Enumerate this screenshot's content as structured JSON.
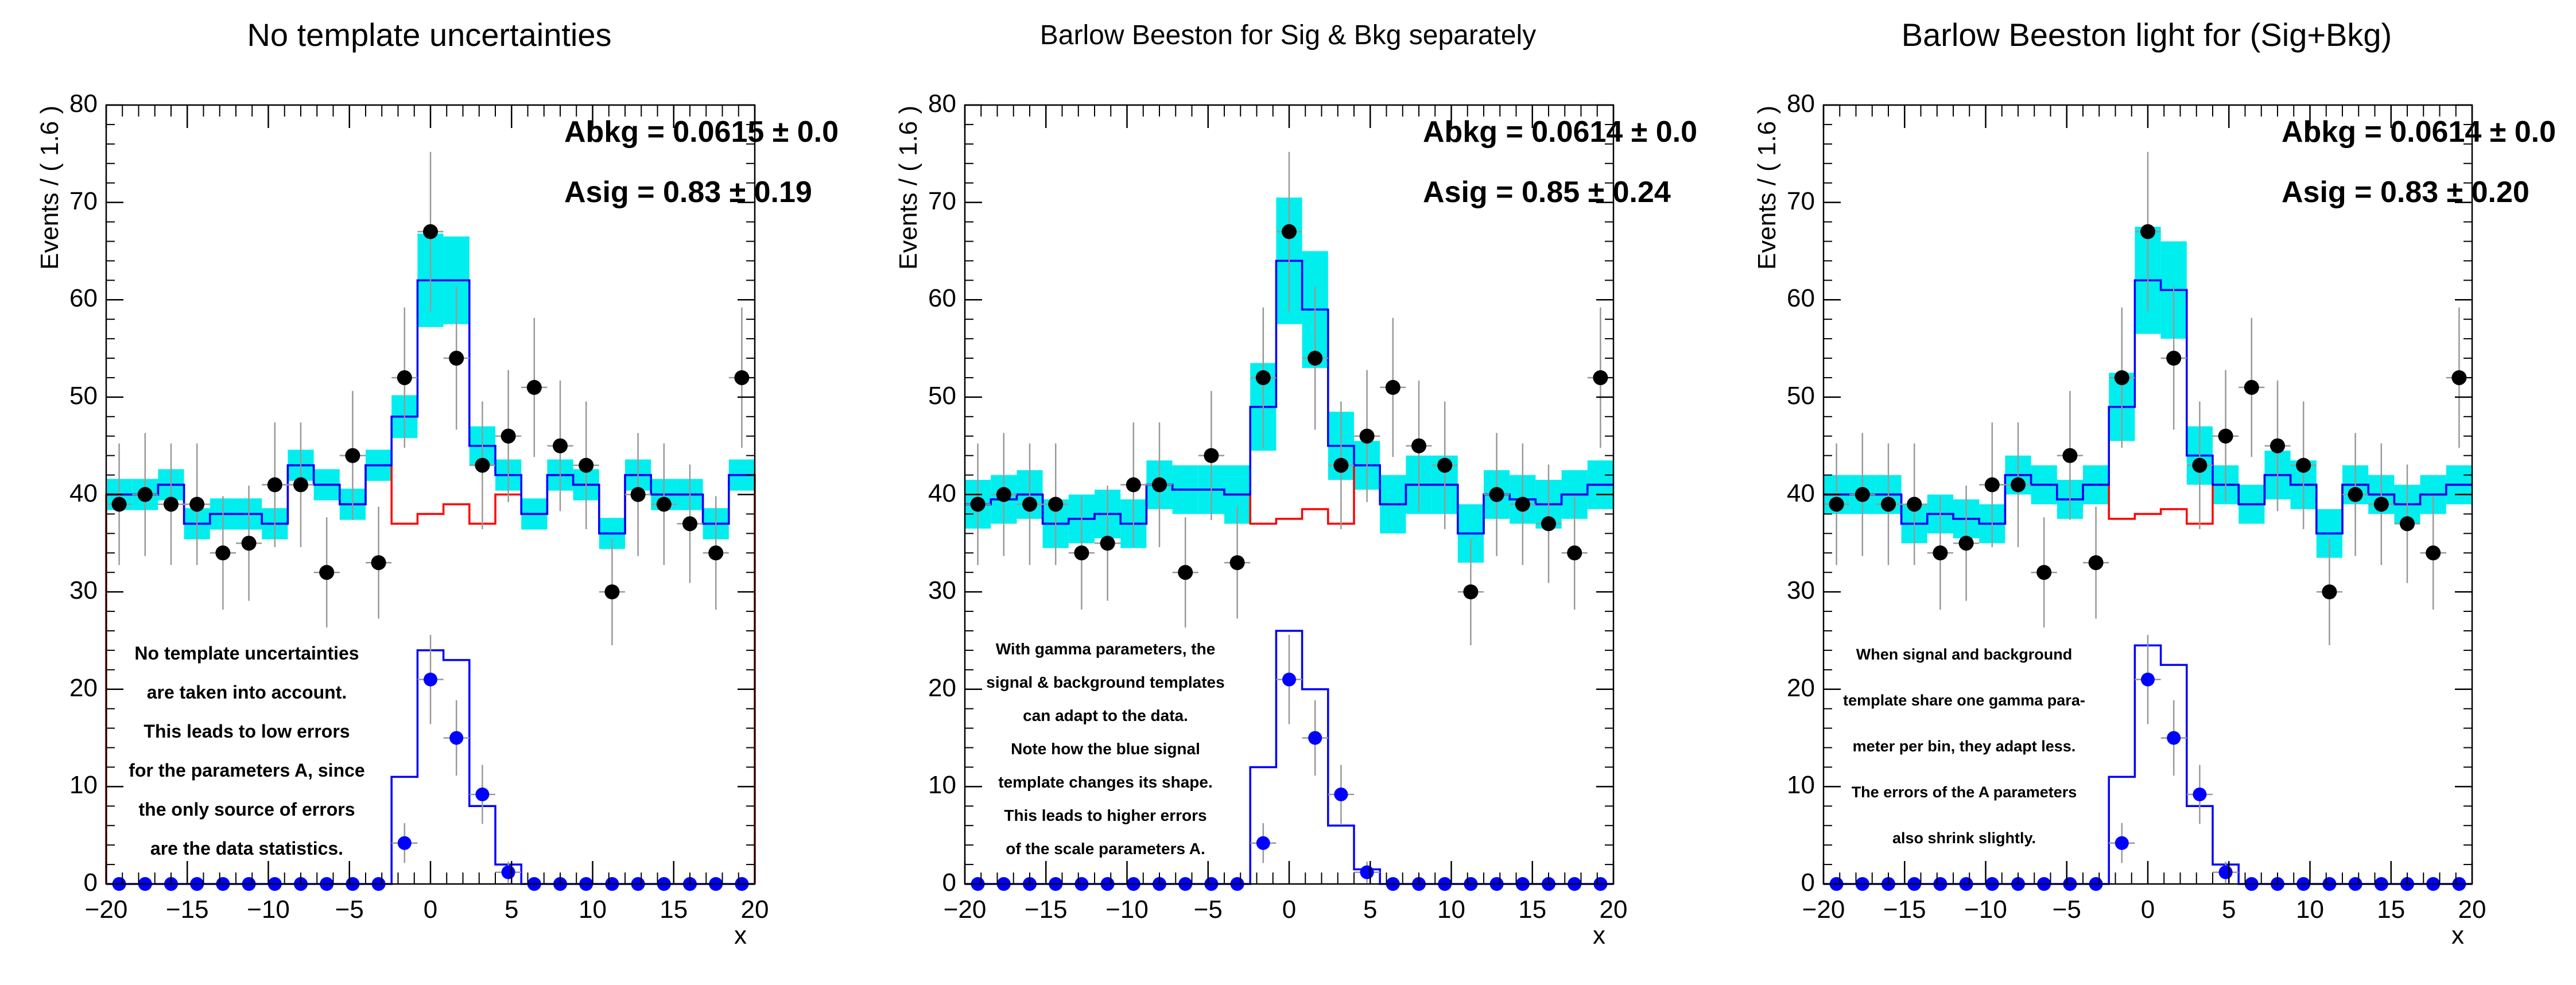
{
  "chart_data": [
    {
      "type": "line",
      "title": "No template uncertainties",
      "xlabel": "x",
      "ylabel": "Events / ( 1.6 )",
      "xlim": [
        -20,
        20
      ],
      "ylim": [
        0,
        80
      ],
      "xticks": [
        "−20",
        "−15",
        "−10",
        "−5",
        "0",
        "5",
        "10",
        "15",
        "20"
      ],
      "yticks": [
        "0",
        "10",
        "20",
        "30",
        "40",
        "50",
        "60",
        "70",
        "80"
      ],
      "params": [
        {
          "label": "Abkg =  0.0615 ± 0.0",
          "value": 0.0615
        },
        {
          "label": "Asig =  0.83 ± 0.19",
          "value": 0.83,
          "error": 0.19
        }
      ],
      "annotation": [
        "No template uncertainties",
        "are taken into account.",
        "This leads to low errors",
        "for the parameters A, since",
        "the only source of errors",
        "are the data statistics."
      ],
      "bin_edges": [
        -20,
        -18.4,
        -16.8,
        -15.2,
        -13.6,
        -12,
        -10.4,
        -8.8,
        -7.2,
        -5.6,
        -4,
        -2.4,
        -0.8,
        0.8,
        2.4,
        4,
        5.6,
        7.2,
        8.8,
        10.4,
        12,
        13.6,
        15.2,
        16.8,
        18.4,
        20
      ],
      "series": [
        {
          "name": "data",
          "x": [
            -19.2,
            -17.6,
            -16,
            -14.4,
            -12.8,
            -11.2,
            -9.6,
            -8,
            -6.4,
            -4.8,
            -3.2,
            -1.6,
            0,
            1.6,
            3.2,
            4.8,
            6.4,
            8,
            9.6,
            11.2,
            12.8,
            14.4,
            16,
            17.6,
            19.2
          ],
          "values": [
            39,
            40,
            39,
            39,
            34,
            35,
            41,
            41,
            32,
            44,
            33,
            52,
            67,
            54,
            43,
            46,
            51,
            45,
            43,
            30,
            40,
            39,
            37,
            34,
            52
          ]
        },
        {
          "name": "total model",
          "values": [
            40,
            40,
            41,
            37,
            38,
            38,
            37,
            43,
            41,
            39,
            43,
            48,
            62,
            62,
            45,
            42,
            38,
            42,
            41,
            36,
            42,
            40,
            40,
            37,
            42
          ]
        },
        {
          "name": "model error band",
          "values": [
            1.6,
            1.6,
            1.6,
            1.6,
            1.6,
            1.6,
            1.6,
            1.6,
            1.6,
            1.6,
            1.6,
            2.2,
            4.8,
            4.5,
            2,
            1.6,
            1.6,
            1.6,
            1.6,
            1.6,
            1.6,
            1.6,
            1.6,
            1.6,
            1.6
          ]
        },
        {
          "name": "background",
          "values": [
            40,
            40,
            41,
            37,
            38,
            38,
            37,
            43,
            41,
            39,
            43,
            37,
            38,
            39,
            37,
            40,
            38,
            42,
            41,
            36,
            42,
            40,
            40,
            37,
            42
          ]
        },
        {
          "name": "signal template",
          "values": [
            0,
            0,
            0,
            0,
            0,
            0,
            0,
            0,
            0,
            0,
            0,
            11,
            24,
            23,
            8,
            2,
            0,
            0,
            0,
            0,
            0,
            0,
            0,
            0,
            0
          ]
        },
        {
          "name": "signal data",
          "values": [
            0,
            0,
            0,
            0,
            0,
            0,
            0,
            0,
            0,
            0,
            0,
            4.2,
            21,
            15,
            9.2,
            1.2,
            0,
            0,
            0,
            0,
            0,
            0,
            0,
            0,
            0
          ]
        }
      ]
    },
    {
      "type": "line",
      "title": "Barlow Beeston for Sig & Bkg separately",
      "xlabel": "x",
      "ylabel": "Events / ( 1.6 )",
      "xlim": [
        -20,
        20
      ],
      "ylim": [
        0,
        80
      ],
      "xticks": [
        "−20",
        "−15",
        "−10",
        "−5",
        "0",
        "5",
        "10",
        "15",
        "20"
      ],
      "yticks": [
        "0",
        "10",
        "20",
        "30",
        "40",
        "50",
        "60",
        "70",
        "80"
      ],
      "params": [
        {
          "label": "Abkg =  0.0614 ± 0.0",
          "value": 0.0614
        },
        {
          "label": "Asig =  0.85 ± 0.24",
          "value": 0.85,
          "error": 0.24
        }
      ],
      "annotation": [
        "With gamma parameters, the",
        "signal & background templates",
        "can adapt to the data.",
        "Note how the blue signal",
        "template changes its shape.",
        "This leads to higher errors",
        "of the scale parameters A."
      ],
      "bin_edges": [
        -20,
        -18.4,
        -16.8,
        -15.2,
        -13.6,
        -12,
        -10.4,
        -8.8,
        -7.2,
        -5.6,
        -4,
        -2.4,
        -0.8,
        0.8,
        2.4,
        4,
        5.6,
        7.2,
        8.8,
        10.4,
        12,
        13.6,
        15.2,
        16.8,
        18.4,
        20
      ],
      "series": [
        {
          "name": "data",
          "x": [
            -19.2,
            -17.6,
            -16,
            -14.4,
            -12.8,
            -11.2,
            -9.6,
            -8,
            -6.4,
            -4.8,
            -3.2,
            -1.6,
            0,
            1.6,
            3.2,
            4.8,
            6.4,
            8,
            9.6,
            11.2,
            12.8,
            14.4,
            16,
            17.6,
            19.2
          ],
          "values": [
            39,
            40,
            39,
            39,
            34,
            35,
            41,
            41,
            32,
            44,
            33,
            52,
            67,
            54,
            43,
            46,
            51,
            45,
            43,
            30,
            40,
            39,
            37,
            34,
            52
          ]
        },
        {
          "name": "total model",
          "values": [
            39,
            39.5,
            40,
            37,
            37.5,
            38,
            37,
            41,
            40.5,
            40.5,
            40,
            49,
            64,
            59,
            45,
            43,
            39,
            41,
            41,
            36,
            40,
            39.5,
            39,
            40,
            41
          ]
        },
        {
          "name": "model error band",
          "values": [
            2.5,
            2.5,
            2.5,
            2.5,
            2.5,
            2.5,
            2.5,
            2.5,
            2.5,
            2.5,
            3,
            4.5,
            6.5,
            6,
            3.5,
            2.5,
            3,
            3,
            3,
            3,
            2.5,
            2.5,
            2.5,
            2.5,
            2.5
          ]
        },
        {
          "name": "background",
          "values": [
            39,
            39.5,
            40,
            37,
            37.5,
            38,
            37,
            41,
            40.5,
            40.5,
            40,
            37,
            37.5,
            38.5,
            37,
            43,
            39,
            41,
            41,
            36,
            40,
            39.5,
            39,
            40,
            41
          ]
        },
        {
          "name": "signal template",
          "values": [
            0,
            0,
            0,
            0,
            0,
            0,
            0,
            0,
            0,
            0,
            0,
            12,
            26,
            20,
            6,
            1.5,
            0,
            0,
            0,
            0,
            0,
            0,
            0,
            0,
            0
          ]
        },
        {
          "name": "signal data",
          "values": [
            0,
            0,
            0,
            0,
            0,
            0,
            0,
            0,
            0,
            0,
            0,
            4.2,
            21,
            15,
            9.2,
            1.2,
            0,
            0,
            0,
            0,
            0,
            0,
            0,
            0,
            0
          ]
        }
      ]
    },
    {
      "type": "line",
      "title": "Barlow Beeston light for (Sig+Bkg)",
      "xlabel": "x",
      "ylabel": "Events / ( 1.6 )",
      "xlim": [
        -20,
        20
      ],
      "ylim": [
        0,
        80
      ],
      "xticks": [
        "−20",
        "−15",
        "−10",
        "−5",
        "0",
        "5",
        "10",
        "15",
        "20"
      ],
      "yticks": [
        "0",
        "10",
        "20",
        "30",
        "40",
        "50",
        "60",
        "70",
        "80"
      ],
      "params": [
        {
          "label": "Abkg =  0.0614 ± 0.0",
          "value": 0.0614
        },
        {
          "label": "Asig =  0.83 ± 0.20",
          "value": 0.83,
          "error": 0.2
        }
      ],
      "annotation": [
        "When signal and background",
        "template share one gamma para-",
        "meter per bin, they adapt less.",
        "The errors of the A parameters",
        "also shrink slightly."
      ],
      "bin_edges": [
        -20,
        -18.4,
        -16.8,
        -15.2,
        -13.6,
        -12,
        -10.4,
        -8.8,
        -7.2,
        -5.6,
        -4,
        -2.4,
        -0.8,
        0.8,
        2.4,
        4,
        5.6,
        7.2,
        8.8,
        10.4,
        12,
        13.6,
        15.2,
        16.8,
        18.4,
        20
      ],
      "series": [
        {
          "name": "data",
          "x": [
            -19.2,
            -17.6,
            -16,
            -14.4,
            -12.8,
            -11.2,
            -9.6,
            -8,
            -6.4,
            -4.8,
            -3.2,
            -1.6,
            0,
            1.6,
            3.2,
            4.8,
            6.4,
            8,
            9.6,
            11.2,
            12.8,
            14.4,
            16,
            17.6,
            19.2
          ],
          "values": [
            39,
            40,
            39,
            39,
            34,
            35,
            41,
            41,
            32,
            44,
            33,
            52,
            67,
            54,
            43,
            46,
            51,
            45,
            43,
            30,
            40,
            39,
            37,
            34,
            52
          ]
        },
        {
          "name": "total model",
          "values": [
            40,
            40,
            40,
            37,
            38,
            37.5,
            37,
            42,
            41,
            39.5,
            41,
            49,
            62,
            61,
            44,
            41,
            39,
            42,
            41,
            36,
            41,
            40,
            39,
            40,
            41
          ]
        },
        {
          "name": "model error band",
          "values": [
            2,
            2,
            2,
            2,
            2,
            2,
            2,
            2,
            2,
            2,
            2,
            3.5,
            5.5,
            5,
            3,
            2,
            2,
            2.5,
            2.5,
            2.5,
            2,
            2,
            2,
            2,
            2
          ]
        },
        {
          "name": "background",
          "values": [
            40,
            40,
            40,
            37,
            38,
            37.5,
            37,
            42,
            41,
            39.5,
            41,
            37.5,
            38,
            38.5,
            37,
            41,
            39,
            42,
            41,
            36,
            41,
            40,
            39,
            40,
            41
          ]
        },
        {
          "name": "signal template",
          "values": [
            0,
            0,
            0,
            0,
            0,
            0,
            0,
            0,
            0,
            0,
            0,
            11,
            24.5,
            22.5,
            8,
            2,
            0,
            0,
            0,
            0,
            0,
            0,
            0,
            0,
            0
          ]
        },
        {
          "name": "signal data",
          "values": [
            0,
            0,
            0,
            0,
            0,
            0,
            0,
            0,
            0,
            0,
            0,
            4.2,
            21,
            15,
            9.2,
            1.2,
            0,
            0,
            0,
            0,
            0,
            0,
            0,
            0,
            0
          ]
        }
      ]
    }
  ],
  "colors": {
    "band": "#00eeee",
    "total": "#0000ff",
    "background": "#ff0000",
    "data": "#000000",
    "signal_data": "#0000ff",
    "axis": "#000000",
    "error_bar": "#999999"
  }
}
